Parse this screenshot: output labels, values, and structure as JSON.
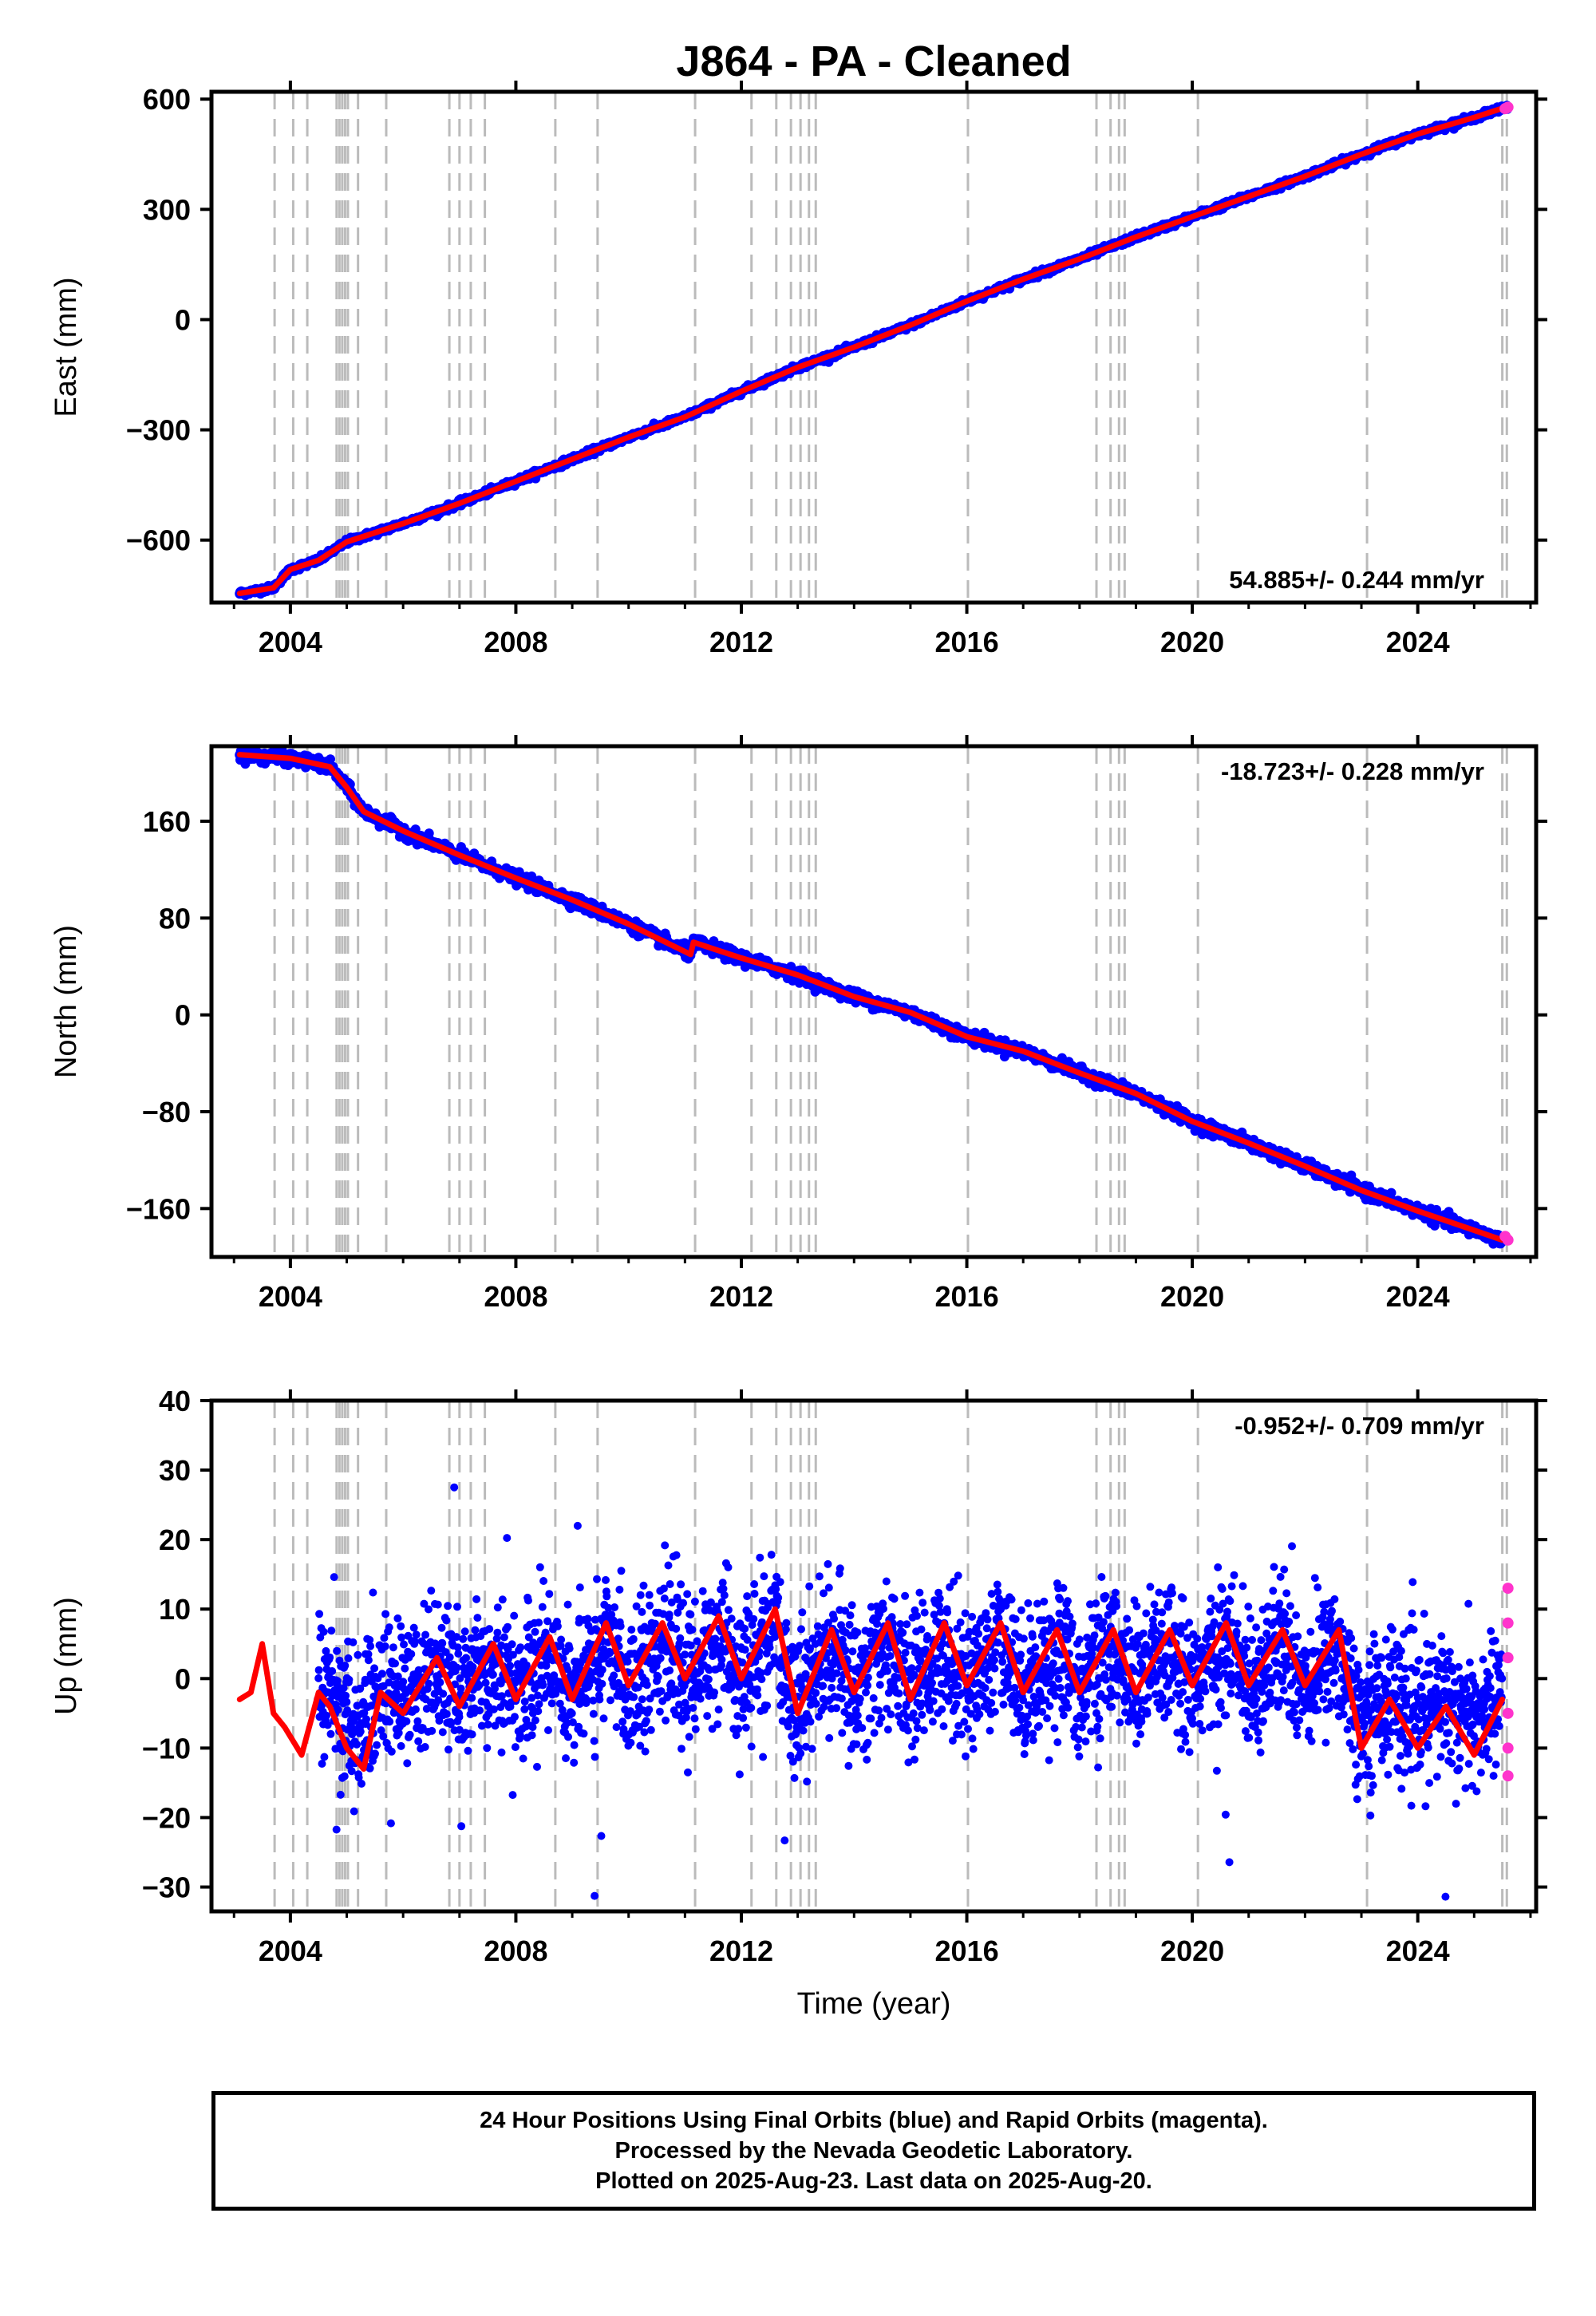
{
  "title": "J864  - PA - Cleaned",
  "colors": {
    "final_orbits": "#0000ff",
    "rapid_orbits": "#ff33cc",
    "model_fit": "#ff0000",
    "event_lines": "#bbbbbb",
    "frame": "#000000"
  },
  "footer": {
    "line1": "24 Hour Positions Using Final Orbits (blue) and Rapid Orbits (magenta).",
    "line2": "Processed by the Nevada Geodetic Laboratory.",
    "line3": "Plotted on 2025-Aug-23. Last data on 2025-Aug-20."
  },
  "chart_data": [
    {
      "type": "scatter",
      "component": "east",
      "ylabel": "East (mm)",
      "xlabel": "",
      "xlim": [
        2002.6,
        2026.1
      ],
      "ylim": [
        -770,
        620
      ],
      "x_ticks": [
        2004,
        2008,
        2012,
        2016,
        2020,
        2024
      ],
      "y_ticks": [
        600,
        300,
        0,
        -300,
        -600
      ],
      "y_tick_labels": [
        "600",
        "300",
        "0",
        "−300",
        "−600"
      ],
      "rate_text": "54.885+/- 0.244 mm/yr",
      "rate_position": "bottom-right",
      "grid": false,
      "series": [
        {
          "name": "",
          "style": "blue-points",
          "x": [
            2003.1,
            2003.7,
            2004.0,
            2004.5,
            2005.0,
            2006.0,
            2007.0,
            2008.0,
            2009.0,
            2010.0,
            2011.0,
            2012.0,
            2013.0,
            2014.0,
            2015.0,
            2016.0,
            2017.0,
            2018.0,
            2019.0,
            2020.0,
            2021.0,
            2022.0,
            2023.0,
            2024.0,
            2025.0,
            2025.6
          ],
          "y": [
            -745,
            -730,
            -680,
            -655,
            -605,
            -555,
            -500,
            -440,
            -380,
            -320,
            -265,
            -195,
            -130,
            -75,
            -15,
            50,
            110,
            165,
            225,
            280,
            335,
            390,
            450,
            505,
            550,
            580
          ]
        },
        {
          "name": "",
          "style": "red-line",
          "x": [
            2003.1,
            2003.7,
            2004.0,
            2004.5,
            2005.0,
            2006.0,
            2007.0,
            2008.0,
            2009.0,
            2010.0,
            2011.0,
            2012.0,
            2013.0,
            2014.0,
            2015.0,
            2016.0,
            2017.0,
            2018.0,
            2019.0,
            2020.0,
            2021.0,
            2022.0,
            2023.0,
            2024.0,
            2025.0,
            2025.6
          ],
          "y": [
            -745,
            -730,
            -680,
            -655,
            -605,
            -555,
            -500,
            -440,
            -380,
            -320,
            -265,
            -195,
            -130,
            -75,
            -15,
            50,
            110,
            165,
            225,
            280,
            335,
            390,
            450,
            505,
            550,
            580
          ]
        },
        {
          "name": "",
          "style": "magenta-points",
          "x": [
            2025.55,
            2025.58,
            2025.6
          ],
          "y": [
            574,
            576,
            578
          ]
        }
      ]
    },
    {
      "type": "scatter",
      "component": "north",
      "ylabel": "North (mm)",
      "xlabel": "",
      "xlim": [
        2002.6,
        2026.1
      ],
      "ylim": [
        -200,
        222
      ],
      "x_ticks": [
        2004,
        2008,
        2012,
        2016,
        2020,
        2024
      ],
      "y_ticks": [
        160,
        80,
        0,
        -80,
        -160
      ],
      "y_tick_labels": [
        "160",
        "80",
        "0",
        "−80",
        "−160"
      ],
      "rate_text": "-18.723+/- 0.228 mm/yr",
      "rate_position": "top-right",
      "grid": false,
      "series": [
        {
          "name": "",
          "style": "blue-points",
          "x": [
            2003.1,
            2004.0,
            2004.7,
            2005.0,
            2005.3,
            2006.0,
            2007.0,
            2008.0,
            2009.0,
            2010.0,
            2011.1,
            2011.15,
            2012.0,
            2013.0,
            2014.0,
            2015.0,
            2016.0,
            2017.0,
            2018.0,
            2019.0,
            2020.0,
            2021.0,
            2022.0,
            2023.0,
            2024.0,
            2025.0,
            2025.5
          ],
          "y": [
            215,
            212,
            205,
            188,
            168,
            152,
            132,
            113,
            95,
            75,
            50,
            60,
            47,
            33,
            15,
            2,
            -18,
            -30,
            -48,
            -65,
            -88,
            -106,
            -125,
            -145,
            -162,
            -178,
            -186
          ]
        },
        {
          "name": "",
          "style": "red-line",
          "x": [
            2003.1,
            2004.0,
            2004.7,
            2005.0,
            2005.3,
            2006.0,
            2007.0,
            2008.0,
            2009.0,
            2010.0,
            2011.1,
            2011.15,
            2012.0,
            2013.0,
            2014.0,
            2015.0,
            2016.0,
            2017.0,
            2018.0,
            2019.0,
            2020.0,
            2021.0,
            2022.0,
            2023.0,
            2024.0,
            2025.0,
            2025.5
          ],
          "y": [
            215,
            212,
            205,
            188,
            168,
            152,
            132,
            113,
            95,
            75,
            50,
            60,
            47,
            33,
            15,
            2,
            -18,
            -30,
            -48,
            -65,
            -88,
            -106,
            -125,
            -145,
            -162,
            -178,
            -186
          ]
        },
        {
          "name": "",
          "style": "magenta-points",
          "x": [
            2025.55,
            2025.6
          ],
          "y": [
            -183,
            -186
          ]
        }
      ]
    },
    {
      "type": "scatter",
      "component": "up",
      "ylabel": "Up (mm)",
      "xlabel": "Time (year)",
      "xlim": [
        2002.6,
        2026.1
      ],
      "ylim": [
        -33.5,
        40
      ],
      "x_ticks": [
        2004,
        2008,
        2012,
        2016,
        2020,
        2024
      ],
      "y_ticks": [
        40,
        30,
        20,
        10,
        0,
        -10,
        -20,
        -30
      ],
      "y_tick_labels": [
        "40",
        "30",
        "20",
        "10",
        "0",
        "−10",
        "−20",
        "−30"
      ],
      "rate_text": "-0.952+/- 0.709 mm/yr",
      "rate_position": "top-right",
      "grid": false,
      "series": [
        {
          "name": "",
          "style": "blue-points",
          "x": [
            2004.5,
            2005.0,
            2005.2,
            2006.0,
            2007.0,
            2008.0,
            2009.0,
            2010.0,
            2011.0,
            2012.0,
            2012.6,
            2013.0,
            2014.0,
            2015.0,
            2016.0,
            2017.0,
            2018.0,
            2019.0,
            2020.0,
            2021.0,
            2022.0,
            2022.8,
            2023.0,
            2024.0,
            2025.0,
            2025.5
          ],
          "y": [
            -3,
            -8,
            -12,
            -2,
            0,
            1,
            2,
            3,
            3,
            4,
            5,
            -4,
            0,
            2,
            1,
            1,
            0,
            0,
            1,
            1,
            0,
            1,
            -8,
            -9,
            -9,
            -2
          ]
        },
        {
          "name": "",
          "style": "red-line",
          "x": [
            2003.1,
            2003.3,
            2003.5,
            2003.7,
            2003.9,
            2004.2,
            2004.5,
            2004.7,
            2005.0,
            2005.3,
            2005.6,
            2006.0,
            2006.6,
            2007.0,
            2007.6,
            2008.0,
            2008.6,
            2009.0,
            2009.6,
            2010.0,
            2010.6,
            2011.0,
            2011.6,
            2012.0,
            2012.6,
            2013.0,
            2013.6,
            2014.0,
            2014.6,
            2015.0,
            2015.6,
            2016.0,
            2016.6,
            2017.0,
            2017.6,
            2018.0,
            2018.6,
            2019.0,
            2019.6,
            2020.0,
            2020.6,
            2021.0,
            2021.6,
            2022.0,
            2022.6,
            2023.0,
            2023.5,
            2024.0,
            2024.5,
            2025.0,
            2025.5
          ],
          "y": [
            -3,
            -2,
            5,
            -5,
            -7,
            -11,
            -2,
            -4,
            -10,
            -13,
            -2,
            -5,
            3,
            -4,
            5,
            -3,
            6,
            -3,
            8,
            -1,
            8,
            0,
            9,
            0,
            10,
            -5,
            7,
            -2,
            8,
            -3,
            8,
            -1,
            8,
            -2,
            7,
            -2,
            7,
            -2,
            7,
            -1,
            8,
            -1,
            7,
            -1,
            7,
            -10,
            -3,
            -10,
            -4,
            -11,
            -3
          ]
        },
        {
          "name": "",
          "style": "magenta-points",
          "x": [
            2025.6,
            2025.6,
            2025.6,
            2025.6,
            2025.6,
            2025.6
          ],
          "y": [
            13,
            8,
            3,
            -5,
            -10,
            -14
          ]
        }
      ]
    }
  ],
  "event_line_years": [
    2003.72,
    2004.05,
    2004.3,
    2004.82,
    2004.87,
    2004.92,
    2004.97,
    2005.02,
    2005.2,
    2005.7,
    2006.82,
    2007.0,
    2007.2,
    2007.45,
    2008.7,
    2009.45,
    2011.18,
    2012.18,
    2012.62,
    2012.88,
    2013.05,
    2013.2,
    2013.32,
    2016.02,
    2018.3,
    2018.55,
    2018.7,
    2018.8,
    2020.1,
    2023.1,
    2025.5,
    2025.58
  ]
}
